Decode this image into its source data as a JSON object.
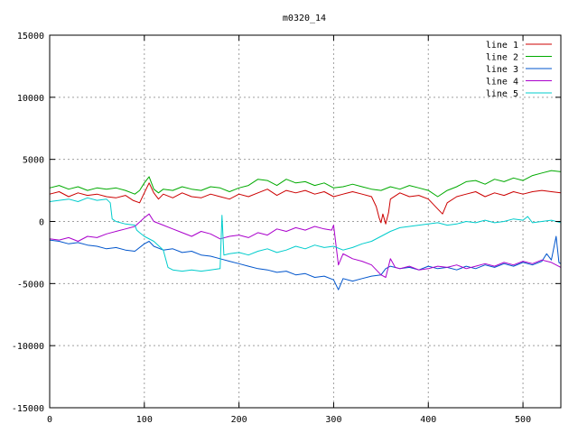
{
  "chart_data": {
    "type": "line",
    "title": "m0320_14",
    "xlabel": "",
    "ylabel": "",
    "xlim": [
      0,
      540
    ],
    "ylim": [
      -15000,
      15000
    ],
    "x_ticks": [
      0,
      100,
      200,
      300,
      400,
      500
    ],
    "y_ticks": [
      -15000,
      -10000,
      -5000,
      0,
      5000,
      10000,
      15000
    ],
    "grid": true,
    "legend_position": "top-right",
    "series": [
      {
        "name": "line 1",
        "color": "#cc0000",
        "points": [
          [
            0,
            2200
          ],
          [
            10,
            2400
          ],
          [
            20,
            2000
          ],
          [
            30,
            2300
          ],
          [
            40,
            2100
          ],
          [
            50,
            2200
          ],
          [
            60,
            2000
          ],
          [
            70,
            1900
          ],
          [
            80,
            2100
          ],
          [
            88,
            1700
          ],
          [
            95,
            1500
          ],
          [
            100,
            2300
          ],
          [
            105,
            3100
          ],
          [
            110,
            2300
          ],
          [
            115,
            1800
          ],
          [
            120,
            2200
          ],
          [
            130,
            1900
          ],
          [
            140,
            2300
          ],
          [
            150,
            2000
          ],
          [
            160,
            1900
          ],
          [
            170,
            2200
          ],
          [
            180,
            2000
          ],
          [
            190,
            1800
          ],
          [
            200,
            2200
          ],
          [
            210,
            2000
          ],
          [
            220,
            2300
          ],
          [
            230,
            2600
          ],
          [
            240,
            2100
          ],
          [
            250,
            2500
          ],
          [
            260,
            2300
          ],
          [
            270,
            2500
          ],
          [
            280,
            2200
          ],
          [
            290,
            2400
          ],
          [
            300,
            2000
          ],
          [
            310,
            2200
          ],
          [
            320,
            2400
          ],
          [
            330,
            2200
          ],
          [
            340,
            2000
          ],
          [
            345,
            1200
          ],
          [
            348,
            300
          ],
          [
            350,
            -100
          ],
          [
            352,
            600
          ],
          [
            355,
            -200
          ],
          [
            358,
            700
          ],
          [
            360,
            1800
          ],
          [
            370,
            2300
          ],
          [
            380,
            2000
          ],
          [
            390,
            2100
          ],
          [
            400,
            1800
          ],
          [
            410,
            1000
          ],
          [
            415,
            600
          ],
          [
            420,
            1500
          ],
          [
            430,
            2000
          ],
          [
            440,
            2200
          ],
          [
            450,
            2400
          ],
          [
            460,
            2000
          ],
          [
            470,
            2300
          ],
          [
            480,
            2100
          ],
          [
            490,
            2400
          ],
          [
            500,
            2200
          ],
          [
            510,
            2400
          ],
          [
            520,
            2500
          ],
          [
            530,
            2400
          ],
          [
            540,
            2300
          ]
        ]
      },
      {
        "name": "line 2",
        "color": "#00aa00",
        "points": [
          [
            0,
            2700
          ],
          [
            10,
            2900
          ],
          [
            20,
            2600
          ],
          [
            30,
            2800
          ],
          [
            40,
            2500
          ],
          [
            50,
            2700
          ],
          [
            60,
            2600
          ],
          [
            70,
            2700
          ],
          [
            80,
            2500
          ],
          [
            90,
            2200
          ],
          [
            95,
            2500
          ],
          [
            100,
            3100
          ],
          [
            105,
            3600
          ],
          [
            110,
            2600
          ],
          [
            115,
            2300
          ],
          [
            120,
            2600
          ],
          [
            130,
            2500
          ],
          [
            140,
            2800
          ],
          [
            150,
            2600
          ],
          [
            160,
            2500
          ],
          [
            170,
            2800
          ],
          [
            180,
            2700
          ],
          [
            190,
            2400
          ],
          [
            200,
            2700
          ],
          [
            210,
            2900
          ],
          [
            220,
            3400
          ],
          [
            230,
            3300
          ],
          [
            240,
            2900
          ],
          [
            250,
            3400
          ],
          [
            260,
            3100
          ],
          [
            270,
            3200
          ],
          [
            280,
            2900
          ],
          [
            290,
            3100
          ],
          [
            300,
            2700
          ],
          [
            310,
            2800
          ],
          [
            320,
            3000
          ],
          [
            330,
            2800
          ],
          [
            340,
            2600
          ],
          [
            350,
            2500
          ],
          [
            360,
            2800
          ],
          [
            370,
            2600
          ],
          [
            380,
            2900
          ],
          [
            390,
            2700
          ],
          [
            400,
            2500
          ],
          [
            410,
            2000
          ],
          [
            420,
            2500
          ],
          [
            430,
            2800
          ],
          [
            440,
            3200
          ],
          [
            450,
            3300
          ],
          [
            460,
            3000
          ],
          [
            470,
            3400
          ],
          [
            480,
            3200
          ],
          [
            490,
            3500
          ],
          [
            500,
            3300
          ],
          [
            510,
            3700
          ],
          [
            520,
            3900
          ],
          [
            530,
            4100
          ],
          [
            540,
            4000
          ]
        ]
      },
      {
        "name": "line 3",
        "color": "#0055cc",
        "points": [
          [
            0,
            -1500
          ],
          [
            10,
            -1600
          ],
          [
            20,
            -1800
          ],
          [
            30,
            -1700
          ],
          [
            40,
            -1900
          ],
          [
            50,
            -2000
          ],
          [
            60,
            -2200
          ],
          [
            70,
            -2100
          ],
          [
            80,
            -2300
          ],
          [
            90,
            -2400
          ],
          [
            100,
            -1800
          ],
          [
            105,
            -1600
          ],
          [
            110,
            -2000
          ],
          [
            120,
            -2300
          ],
          [
            130,
            -2200
          ],
          [
            140,
            -2500
          ],
          [
            150,
            -2400
          ],
          [
            160,
            -2700
          ],
          [
            170,
            -2800
          ],
          [
            180,
            -3000
          ],
          [
            190,
            -3200
          ],
          [
            200,
            -3400
          ],
          [
            210,
            -3600
          ],
          [
            220,
            -3800
          ],
          [
            230,
            -3900
          ],
          [
            240,
            -4100
          ],
          [
            250,
            -4000
          ],
          [
            260,
            -4300
          ],
          [
            270,
            -4200
          ],
          [
            280,
            -4500
          ],
          [
            290,
            -4400
          ],
          [
            300,
            -4700
          ],
          [
            305,
            -5500
          ],
          [
            310,
            -4600
          ],
          [
            320,
            -4800
          ],
          [
            330,
            -4600
          ],
          [
            340,
            -4400
          ],
          [
            350,
            -4300
          ],
          [
            355,
            -3800
          ],
          [
            360,
            -3600
          ],
          [
            370,
            -3800
          ],
          [
            380,
            -3700
          ],
          [
            390,
            -3900
          ],
          [
            400,
            -3600
          ],
          [
            410,
            -3800
          ],
          [
            420,
            -3700
          ],
          [
            430,
            -3900
          ],
          [
            440,
            -3600
          ],
          [
            450,
            -3800
          ],
          [
            460,
            -3500
          ],
          [
            470,
            -3700
          ],
          [
            480,
            -3400
          ],
          [
            490,
            -3600
          ],
          [
            500,
            -3300
          ],
          [
            510,
            -3500
          ],
          [
            520,
            -3200
          ],
          [
            525,
            -2600
          ],
          [
            530,
            -3100
          ],
          [
            535,
            -1200
          ],
          [
            538,
            -3300
          ],
          [
            540,
            -3400
          ]
        ]
      },
      {
        "name": "line 4",
        "color": "#aa00cc",
        "points": [
          [
            0,
            -1400
          ],
          [
            10,
            -1500
          ],
          [
            20,
            -1300
          ],
          [
            30,
            -1600
          ],
          [
            40,
            -1200
          ],
          [
            50,
            -1300
          ],
          [
            60,
            -1000
          ],
          [
            70,
            -800
          ],
          [
            80,
            -600
          ],
          [
            90,
            -400
          ],
          [
            100,
            300
          ],
          [
            105,
            600
          ],
          [
            110,
            0
          ],
          [
            120,
            -300
          ],
          [
            130,
            -600
          ],
          [
            140,
            -900
          ],
          [
            150,
            -1200
          ],
          [
            160,
            -800
          ],
          [
            170,
            -1000
          ],
          [
            180,
            -1400
          ],
          [
            190,
            -1200
          ],
          [
            200,
            -1100
          ],
          [
            210,
            -1300
          ],
          [
            220,
            -900
          ],
          [
            230,
            -1100
          ],
          [
            240,
            -600
          ],
          [
            250,
            -800
          ],
          [
            260,
            -500
          ],
          [
            270,
            -700
          ],
          [
            280,
            -400
          ],
          [
            290,
            -600
          ],
          [
            298,
            -700
          ],
          [
            300,
            -300
          ],
          [
            305,
            -3500
          ],
          [
            310,
            -2600
          ],
          [
            320,
            -3000
          ],
          [
            330,
            -3200
          ],
          [
            340,
            -3500
          ],
          [
            350,
            -4300
          ],
          [
            355,
            -4500
          ],
          [
            360,
            -3000
          ],
          [
            365,
            -3700
          ],
          [
            370,
            -3800
          ],
          [
            380,
            -3600
          ],
          [
            390,
            -3900
          ],
          [
            400,
            -3800
          ],
          [
            410,
            -3600
          ],
          [
            420,
            -3700
          ],
          [
            430,
            -3500
          ],
          [
            440,
            -3800
          ],
          [
            450,
            -3600
          ],
          [
            460,
            -3400
          ],
          [
            470,
            -3600
          ],
          [
            480,
            -3300
          ],
          [
            490,
            -3500
          ],
          [
            500,
            -3200
          ],
          [
            510,
            -3400
          ],
          [
            520,
            -3100
          ],
          [
            530,
            -3300
          ],
          [
            540,
            -3700
          ]
        ]
      },
      {
        "name": "line 5",
        "color": "#00cccc",
        "points": [
          [
            0,
            1600
          ],
          [
            10,
            1700
          ],
          [
            20,
            1800
          ],
          [
            30,
            1600
          ],
          [
            40,
            1900
          ],
          [
            50,
            1700
          ],
          [
            60,
            1800
          ],
          [
            64,
            1500
          ],
          [
            66,
            200
          ],
          [
            70,
            0
          ],
          [
            80,
            -200
          ],
          [
            90,
            -300
          ],
          [
            92,
            -700
          ],
          [
            95,
            -900
          ],
          [
            100,
            -1200
          ],
          [
            110,
            -1600
          ],
          [
            120,
            -2300
          ],
          [
            125,
            -3700
          ],
          [
            130,
            -3900
          ],
          [
            140,
            -4000
          ],
          [
            150,
            -3900
          ],
          [
            160,
            -4000
          ],
          [
            170,
            -3900
          ],
          [
            180,
            -3800
          ],
          [
            182,
            500
          ],
          [
            184,
            -2700
          ],
          [
            190,
            -2600
          ],
          [
            200,
            -2500
          ],
          [
            210,
            -2700
          ],
          [
            220,
            -2400
          ],
          [
            230,
            -2200
          ],
          [
            240,
            -2500
          ],
          [
            250,
            -2300
          ],
          [
            260,
            -2000
          ],
          [
            270,
            -2200
          ],
          [
            280,
            -1900
          ],
          [
            290,
            -2100
          ],
          [
            300,
            -2000
          ],
          [
            310,
            -2300
          ],
          [
            320,
            -2100
          ],
          [
            330,
            -1800
          ],
          [
            340,
            -1600
          ],
          [
            350,
            -1200
          ],
          [
            360,
            -800
          ],
          [
            370,
            -500
          ],
          [
            380,
            -400
          ],
          [
            390,
            -300
          ],
          [
            400,
            -200
          ],
          [
            410,
            -100
          ],
          [
            420,
            -300
          ],
          [
            430,
            -200
          ],
          [
            440,
            0
          ],
          [
            450,
            -100
          ],
          [
            460,
            100
          ],
          [
            470,
            -100
          ],
          [
            480,
            0
          ],
          [
            490,
            200
          ],
          [
            500,
            100
          ],
          [
            505,
            400
          ],
          [
            510,
            -100
          ],
          [
            520,
            0
          ],
          [
            530,
            100
          ],
          [
            540,
            -100
          ]
        ]
      }
    ]
  }
}
